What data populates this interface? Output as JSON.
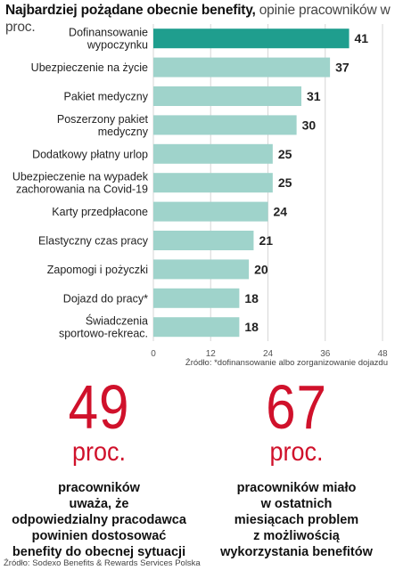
{
  "header": {
    "title_bold": "Najbardziej pożądane obecnie benefity,",
    "title_rest": " opinie pracowników w proc."
  },
  "chart_data": {
    "type": "bar",
    "orientation": "horizontal",
    "categories": [
      "Dofinansowanie wypoczynku",
      "Ubezpieczenie na życie",
      "Pakiet medyczny",
      "Poszerzony pakiet medyczny",
      "Dodatkowy płatny urlop",
      "Ubezpieczenie na wypadek zachorowania na Covid-19",
      "Karty przedpłacone",
      "Elastyczny czas pracy",
      "Zapomogi i pożyczki",
      "Dojazd do pracy*",
      "Świadczenia sportowo-rekreac."
    ],
    "category_lines": [
      [
        "Dofinansowanie",
        "wypoczynku"
      ],
      [
        "Ubezpieczenie na życie"
      ],
      [
        "Pakiet medyczny"
      ],
      [
        "Poszerzony pakiet",
        "medyczny"
      ],
      [
        "Dodatkowy płatny urlop"
      ],
      [
        "Ubezpieczenie na wypadek",
        "zachorowania na Covid-19"
      ],
      [
        "Karty przedpłacone"
      ],
      [
        "Elastyczny czas pracy"
      ],
      [
        "Zapomogi i pożyczki"
      ],
      [
        "Dojazd do pracy*"
      ],
      [
        "Świadczenia",
        "sportowo-rekreac."
      ]
    ],
    "values": [
      41,
      37,
      31,
      30,
      25,
      25,
      24,
      21,
      20,
      18,
      18
    ],
    "xlim": [
      0,
      48
    ],
    "xticks": [
      0,
      12,
      24,
      36,
      48
    ],
    "grid": true,
    "colors": {
      "highlight": "#1f9e8e",
      "bar": "#9fd3cb",
      "grid": "#d6d6d6"
    }
  },
  "source_top": "Źródło: *dofinansowanie albo zorganizowanie dojazdu",
  "stats": [
    {
      "number": "49",
      "unit": "proc.",
      "lines": [
        {
          "text": "pracowników",
          "bold": true
        },
        {
          "text": "uważa, że",
          "bold": true
        },
        {
          "text": "odpowiedzialny pracodawca",
          "bold": true
        },
        {
          "text": "powinien dostosować",
          "bold": true
        },
        {
          "text": "benefity do obecnej sytuacji",
          "bold": true
        }
      ]
    },
    {
      "number": "67",
      "unit": "proc.",
      "lines": [
        {
          "text": "pracowników miało",
          "bold": true
        },
        {
          "text": "w ostatnich",
          "bold": true
        },
        {
          "text": "miesiącach problem",
          "bold": true
        },
        {
          "text": "z możliwością",
          "bold": true
        },
        {
          "text": "wykorzystania benefitów",
          "bold": true
        }
      ]
    }
  ],
  "source_bottom": "Źródło: Sodexo Benefits & Rewards Services Polska",
  "accent_color": "#d0112b"
}
